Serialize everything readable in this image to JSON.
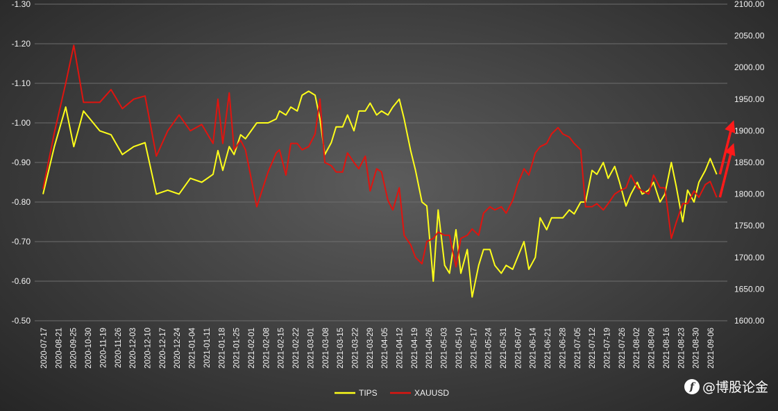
{
  "chart_data": {
    "type": "line",
    "title": "",
    "xlabel": "",
    "ylabel": "",
    "y_left": {
      "reversed": true,
      "range": [
        -1.3,
        -0.5
      ],
      "ticks": [
        "-1.30",
        "-1.20",
        "-1.10",
        "-1.00",
        "-0.90",
        "-0.80",
        "-0.70",
        "-0.60",
        "-0.50"
      ],
      "tick_values": [
        -1.3,
        -1.2,
        -1.1,
        -1.0,
        -0.9,
        -0.8,
        -0.7,
        -0.6,
        -0.5
      ]
    },
    "y_right": {
      "range": [
        1600,
        2100
      ],
      "ticks": [
        "2100.00",
        "2050.00",
        "2000.00",
        "1950.00",
        "1900.00",
        "1850.00",
        "1800.00",
        "1750.00",
        "1700.00",
        "1650.00",
        "1600.00"
      ],
      "tick_values": [
        2100,
        2050,
        2000,
        1950,
        1900,
        1850,
        1800,
        1750,
        1700,
        1650,
        1600
      ]
    },
    "x_range": [
      "2020-07-17",
      "2021-09-10"
    ],
    "x_tick_labels": [
      "2020-07-17",
      "2020-08-21",
      "2020-09-25",
      "2020-10-30",
      "2020-11-19",
      "2020-11-26",
      "2020-12-03",
      "2020-12-10",
      "2020-12-17",
      "2020-12-24",
      "2021-01-04",
      "2021-01-11",
      "2021-01-18",
      "2021-01-25",
      "2021-02-01",
      "2021-02-08",
      "2021-02-15",
      "2021-02-22",
      "2021-03-01",
      "2021-03-08",
      "2021-03-15",
      "2021-03-22",
      "2021-03-29",
      "2021-04-05",
      "2021-04-12",
      "2021-04-19",
      "2021-04-26",
      "2021-05-03",
      "2021-05-10",
      "2021-05-17",
      "2021-05-24",
      "2021-05-31",
      "2021-06-07",
      "2021-06-14",
      "2021-06-21",
      "2021-06-28",
      "2021-07-05",
      "2021-07-12",
      "2021-07-19",
      "2021-07-26",
      "2021-08-02",
      "2021-08-09",
      "2021-08-16",
      "2021-08-23",
      "2021-08-30",
      "2021-09-06"
    ],
    "grid": "horizontal",
    "legend": "bottom-center",
    "series": [
      {
        "name": "TIPS",
        "axis": "left",
        "color": "#ffff1a",
        "points": [
          [
            "2020-07-17",
            -0.82
          ],
          [
            "2020-07-24",
            -0.94
          ],
          [
            "2020-07-31",
            -1.04
          ],
          [
            "2020-08-05",
            -0.94
          ],
          [
            "2020-08-11",
            -1.03
          ],
          [
            "2020-08-21",
            -0.98
          ],
          [
            "2020-08-28",
            -0.97
          ],
          [
            "2020-09-04",
            -0.92
          ],
          [
            "2020-09-11",
            -0.94
          ],
          [
            "2020-09-18",
            -0.95
          ],
          [
            "2020-09-25",
            -0.82
          ],
          [
            "2020-10-02",
            -0.83
          ],
          [
            "2020-10-09",
            -0.82
          ],
          [
            "2020-10-16",
            -0.86
          ],
          [
            "2020-10-23",
            -0.85
          ],
          [
            "2020-10-30",
            -0.87
          ],
          [
            "2020-11-02",
            -0.93
          ],
          [
            "2020-11-05",
            -0.88
          ],
          [
            "2020-11-09",
            -0.94
          ],
          [
            "2020-11-12",
            -0.92
          ],
          [
            "2020-11-16",
            -0.97
          ],
          [
            "2020-11-19",
            -0.96
          ],
          [
            "2020-11-26",
            -1.0
          ],
          [
            "2020-12-03",
            -1.0
          ],
          [
            "2020-12-08",
            -1.01
          ],
          [
            "2020-12-10",
            -1.03
          ],
          [
            "2020-12-14",
            -1.02
          ],
          [
            "2020-12-17",
            -1.04
          ],
          [
            "2020-12-21",
            -1.03
          ],
          [
            "2020-12-24",
            -1.07
          ],
          [
            "2020-12-28",
            -1.08
          ],
          [
            "2021-01-01",
            -1.07
          ],
          [
            "2021-01-04",
            -1.01
          ],
          [
            "2021-01-07",
            -0.92
          ],
          [
            "2021-01-11",
            -0.95
          ],
          [
            "2021-01-14",
            -0.99
          ],
          [
            "2021-01-18",
            -0.99
          ],
          [
            "2021-01-21",
            -1.02
          ],
          [
            "2021-01-25",
            -0.98
          ],
          [
            "2021-01-28",
            -1.03
          ],
          [
            "2021-02-01",
            -1.03
          ],
          [
            "2021-02-04",
            -1.05
          ],
          [
            "2021-02-08",
            -1.02
          ],
          [
            "2021-02-11",
            -1.03
          ],
          [
            "2021-02-15",
            -1.02
          ],
          [
            "2021-02-18",
            -1.04
          ],
          [
            "2021-02-22",
            -1.06
          ],
          [
            "2021-02-25",
            -1.01
          ],
          [
            "2021-03-01",
            -0.93
          ],
          [
            "2021-03-04",
            -0.88
          ],
          [
            "2021-03-08",
            -0.8
          ],
          [
            "2021-03-11",
            -0.79
          ],
          [
            "2021-03-15",
            -0.6
          ],
          [
            "2021-03-18",
            -0.78
          ],
          [
            "2021-03-22",
            -0.64
          ],
          [
            "2021-03-25",
            -0.62
          ],
          [
            "2021-03-29",
            -0.73
          ],
          [
            "2021-04-01",
            -0.62
          ],
          [
            "2021-04-05",
            -0.68
          ],
          [
            "2021-04-08",
            -0.56
          ],
          [
            "2021-04-12",
            -0.64
          ],
          [
            "2021-04-15",
            -0.68
          ],
          [
            "2021-04-19",
            -0.68
          ],
          [
            "2021-04-22",
            -0.64
          ],
          [
            "2021-04-26",
            -0.62
          ],
          [
            "2021-04-29",
            -0.64
          ],
          [
            "2021-05-03",
            -0.63
          ],
          [
            "2021-05-06",
            -0.66
          ],
          [
            "2021-05-10",
            -0.7
          ],
          [
            "2021-05-13",
            -0.63
          ],
          [
            "2021-05-17",
            -0.66
          ],
          [
            "2021-05-20",
            -0.76
          ],
          [
            "2021-05-24",
            -0.73
          ],
          [
            "2021-05-27",
            -0.76
          ],
          [
            "2021-05-31",
            -0.76
          ],
          [
            "2021-06-03",
            -0.76
          ],
          [
            "2021-06-07",
            -0.78
          ],
          [
            "2021-06-10",
            -0.77
          ],
          [
            "2021-06-14",
            -0.8
          ],
          [
            "2021-06-17",
            -0.8
          ],
          [
            "2021-06-21",
            -0.88
          ],
          [
            "2021-06-24",
            -0.87
          ],
          [
            "2021-06-28",
            -0.9
          ],
          [
            "2021-07-01",
            -0.86
          ],
          [
            "2021-07-05",
            -0.89
          ],
          [
            "2021-07-08",
            -0.85
          ],
          [
            "2021-07-12",
            -0.79
          ],
          [
            "2021-07-15",
            -0.82
          ],
          [
            "2021-07-19",
            -0.85
          ],
          [
            "2021-07-22",
            -0.82
          ],
          [
            "2021-07-26",
            -0.83
          ],
          [
            "2021-07-29",
            -0.85
          ],
          [
            "2021-08-02",
            -0.8
          ],
          [
            "2021-08-05",
            -0.82
          ],
          [
            "2021-08-09",
            -0.9
          ],
          [
            "2021-08-12",
            -0.84
          ],
          [
            "2021-08-16",
            -0.75
          ],
          [
            "2021-08-19",
            -0.83
          ],
          [
            "2021-08-23",
            -0.8
          ],
          [
            "2021-08-26",
            -0.85
          ],
          [
            "2021-08-30",
            -0.88
          ],
          [
            "2021-09-02",
            -0.91
          ],
          [
            "2021-09-06",
            -0.87
          ]
        ],
        "note_x": "x positions estimated from the date axis"
      },
      {
        "name": "XAUUSD",
        "axis": "right",
        "color": "#e0140f",
        "points": [
          [
            "2020-07-17",
            1808
          ],
          [
            "2020-07-24",
            1897
          ],
          [
            "2020-07-31",
            1975
          ],
          [
            "2020-08-05",
            2035
          ],
          [
            "2020-08-11",
            1945
          ],
          [
            "2020-08-21",
            1945
          ],
          [
            "2020-08-28",
            1965
          ],
          [
            "2020-09-04",
            1935
          ],
          [
            "2020-09-11",
            1950
          ],
          [
            "2020-09-18",
            1955
          ],
          [
            "2020-09-25",
            1860
          ],
          [
            "2020-10-02",
            1900
          ],
          [
            "2020-10-09",
            1925
          ],
          [
            "2020-10-16",
            1900
          ],
          [
            "2020-10-23",
            1910
          ],
          [
            "2020-10-30",
            1880
          ],
          [
            "2020-11-02",
            1950
          ],
          [
            "2020-11-05",
            1880
          ],
          [
            "2020-11-09",
            1960
          ],
          [
            "2020-11-12",
            1870
          ],
          [
            "2020-11-16",
            1885
          ],
          [
            "2020-11-19",
            1870
          ],
          [
            "2020-11-26",
            1780
          ],
          [
            "2020-12-03",
            1835
          ],
          [
            "2020-12-08",
            1865
          ],
          [
            "2020-12-10",
            1870
          ],
          [
            "2020-12-14",
            1830
          ],
          [
            "2020-12-17",
            1880
          ],
          [
            "2020-12-21",
            1880
          ],
          [
            "2020-12-24",
            1870
          ],
          [
            "2020-12-28",
            1875
          ],
          [
            "2021-01-01",
            1895
          ],
          [
            "2021-01-04",
            1950
          ],
          [
            "2021-01-07",
            1850
          ],
          [
            "2021-01-11",
            1845
          ],
          [
            "2021-01-14",
            1835
          ],
          [
            "2021-01-18",
            1835
          ],
          [
            "2021-01-21",
            1865
          ],
          [
            "2021-01-25",
            1850
          ],
          [
            "2021-01-28",
            1840
          ],
          [
            "2021-02-01",
            1860
          ],
          [
            "2021-02-04",
            1805
          ],
          [
            "2021-02-08",
            1840
          ],
          [
            "2021-02-11",
            1835
          ],
          [
            "2021-02-15",
            1790
          ],
          [
            "2021-02-18",
            1775
          ],
          [
            "2021-02-22",
            1810
          ],
          [
            "2021-02-25",
            1735
          ],
          [
            "2021-03-01",
            1720
          ],
          [
            "2021-03-04",
            1700
          ],
          [
            "2021-03-08",
            1690
          ],
          [
            "2021-03-11",
            1725
          ],
          [
            "2021-03-15",
            1730
          ],
          [
            "2021-03-18",
            1740
          ],
          [
            "2021-03-22",
            1735
          ],
          [
            "2021-03-25",
            1735
          ],
          [
            "2021-03-29",
            1685
          ],
          [
            "2021-04-01",
            1730
          ],
          [
            "2021-04-05",
            1735
          ],
          [
            "2021-04-08",
            1745
          ],
          [
            "2021-04-12",
            1735
          ],
          [
            "2021-04-15",
            1770
          ],
          [
            "2021-04-19",
            1780
          ],
          [
            "2021-04-22",
            1775
          ],
          [
            "2021-04-26",
            1780
          ],
          [
            "2021-04-29",
            1770
          ],
          [
            "2021-05-03",
            1790
          ],
          [
            "2021-05-06",
            1815
          ],
          [
            "2021-05-10",
            1840
          ],
          [
            "2021-05-13",
            1830
          ],
          [
            "2021-05-17",
            1865
          ],
          [
            "2021-05-20",
            1875
          ],
          [
            "2021-05-24",
            1880
          ],
          [
            "2021-05-27",
            1895
          ],
          [
            "2021-05-31",
            1905
          ],
          [
            "2021-06-03",
            1895
          ],
          [
            "2021-06-07",
            1890
          ],
          [
            "2021-06-10",
            1880
          ],
          [
            "2021-06-14",
            1870
          ],
          [
            "2021-06-17",
            1780
          ],
          [
            "2021-06-21",
            1780
          ],
          [
            "2021-06-24",
            1785
          ],
          [
            "2021-06-28",
            1775
          ],
          [
            "2021-07-01",
            1785
          ],
          [
            "2021-07-05",
            1800
          ],
          [
            "2021-07-08",
            1805
          ],
          [
            "2021-07-12",
            1810
          ],
          [
            "2021-07-15",
            1830
          ],
          [
            "2021-07-19",
            1810
          ],
          [
            "2021-07-22",
            1805
          ],
          [
            "2021-07-26",
            1800
          ],
          [
            "2021-07-29",
            1830
          ],
          [
            "2021-08-02",
            1810
          ],
          [
            "2021-08-05",
            1810
          ],
          [
            "2021-08-09",
            1730
          ],
          [
            "2021-08-12",
            1755
          ],
          [
            "2021-08-16",
            1785
          ],
          [
            "2021-08-19",
            1785
          ],
          [
            "2021-08-23",
            1805
          ],
          [
            "2021-08-26",
            1795
          ],
          [
            "2021-08-30",
            1815
          ],
          [
            "2021-09-02",
            1820
          ],
          [
            "2021-09-06",
            1795
          ]
        ],
        "note_x": "x positions estimated from the date axis"
      }
    ],
    "annotations": [
      {
        "kind": "arrow",
        "color": "#ff1a1a",
        "direction": "up",
        "near_series": "TIPS",
        "at_date": "2021-09-08"
      },
      {
        "kind": "arrow",
        "color": "#ff1a1a",
        "direction": "up",
        "near_series": "XAUUSD",
        "at_date": "2021-09-08"
      }
    ]
  },
  "watermark": {
    "text": "@博股论金",
    "logo": "f"
  }
}
